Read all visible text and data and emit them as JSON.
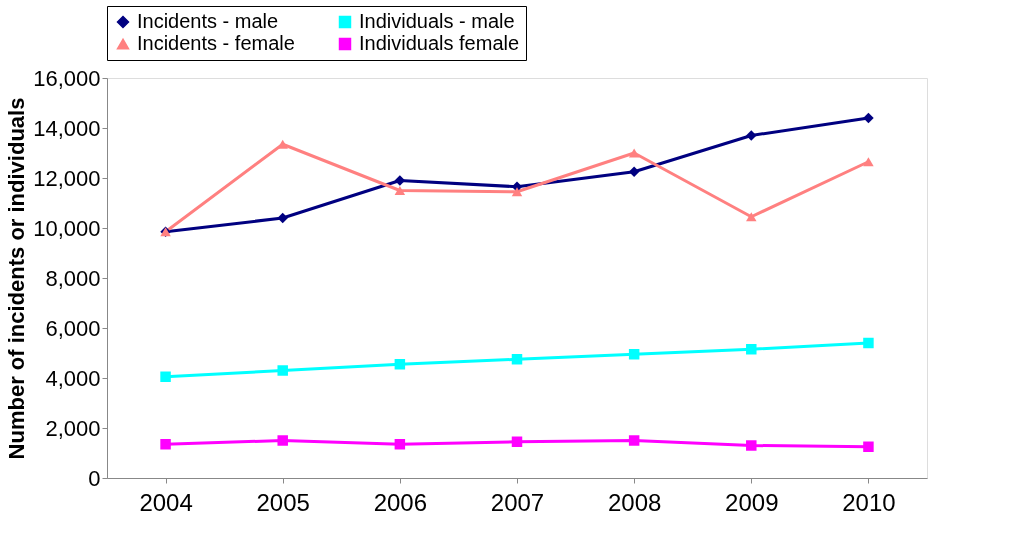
{
  "chart_data": {
    "type": "line",
    "ylabel": "Number of incidents or individuals",
    "categories": [
      "2004",
      "2005",
      "2006",
      "2007",
      "2008",
      "2009",
      "2010"
    ],
    "series": [
      {
        "name": "Incidents - male",
        "color": "#000080",
        "marker": "diamond",
        "values": [
          9850,
          10400,
          11900,
          11650,
          12250,
          13700,
          14400
        ]
      },
      {
        "name": "Individuals - male",
        "color": "#00ffff",
        "marker": "square",
        "values": [
          4050,
          4300,
          4550,
          4750,
          4950,
          5150,
          5400
        ]
      },
      {
        "name": "Incidents - female",
        "color": "#ff8080",
        "marker": "triangle",
        "values": [
          9850,
          13350,
          11500,
          11450,
          13000,
          10450,
          12650
        ]
      },
      {
        "name": "Individuals female",
        "color": "#ff00ff",
        "marker": "square",
        "values": [
          1350,
          1500,
          1350,
          1450,
          1500,
          1300,
          1250
        ]
      }
    ],
    "ylim": [
      0,
      16000
    ],
    "yticks": [
      0,
      {
        "value": 2000,
        "label": "2,000"
      },
      {
        "value": 4000,
        "label": "4,000"
      },
      {
        "value": 6000,
        "label": "6,000"
      },
      {
        "value": 8000,
        "label": "8,000"
      },
      {
        "value": 10000,
        "label": "10,000"
      },
      {
        "value": 12000,
        "label": "12,000"
      },
      {
        "value": 14000,
        "label": "14,000"
      },
      {
        "value": 16000,
        "label": "16,000"
      }
    ],
    "grid": false,
    "legend": "top",
    "line_style": "solid"
  }
}
